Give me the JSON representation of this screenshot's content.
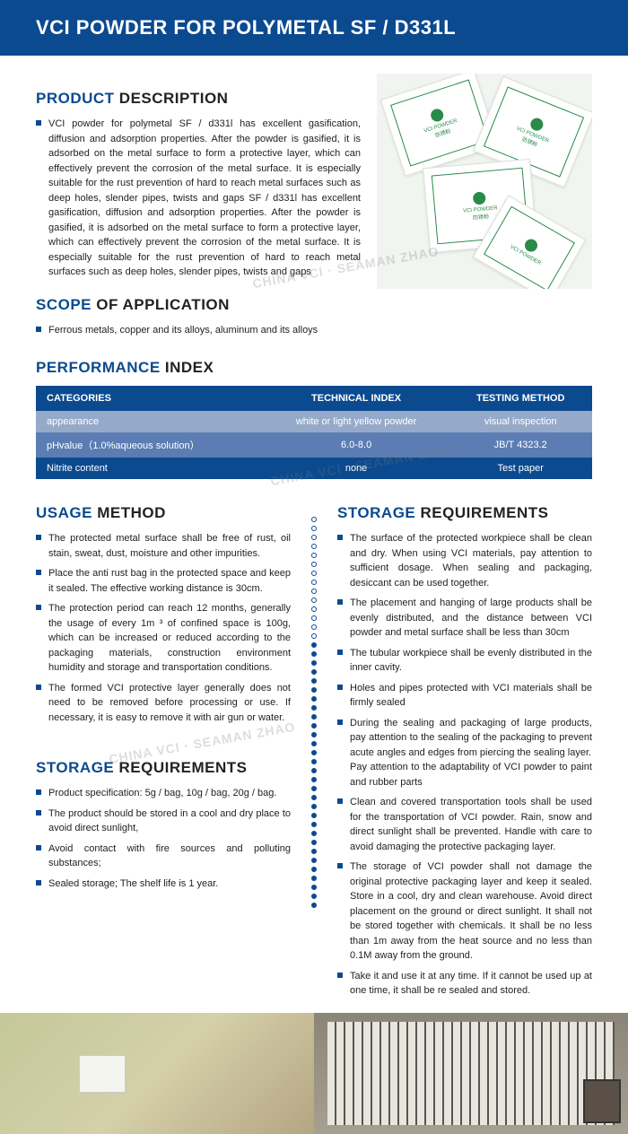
{
  "header": {
    "title": "VCI POWDER FOR POLYMETAL SF / D331L"
  },
  "sections": {
    "product_desc": {
      "title_blue": "PRODUCT",
      "title_black": " DESCRIPTION"
    },
    "scope": {
      "title_blue": "SCOPE",
      "title_black": " OF APPLICATION"
    },
    "perf": {
      "title_blue": "PERFORMANCE",
      "title_black": " INDEX"
    },
    "usage": {
      "title_blue": "USAGE",
      "title_black": " METHOD"
    },
    "storage1": {
      "title_blue": "STORAGE",
      "title_black": " REQUIREMENTS"
    },
    "storage2": {
      "title_blue": "STORAGE",
      "title_black": " REQUIREMENTS"
    }
  },
  "product_description": "VCI powder for polymetal SF / d331l has excellent gasification, diffusion and adsorption properties. After the powder is gasified, it is adsorbed on the metal surface to form a protective layer, which can effectively prevent the corrosion of the metal surface. It is especially suitable for the rust prevention of hard to reach metal surfaces such as deep holes, slender pipes, twists and gaps SF / d331l has excellent gasification, diffusion and adsorption properties. After the powder is gasified, it is adsorbed on the metal surface to form a protective layer, which can effectively prevent the corrosion of the metal surface. It is especially suitable for the rust prevention of hard to reach metal surfaces such as deep holes, slender pipes, twists and gaps",
  "scope_text": "Ferrous metals, copper and its alloys, aluminum and its alloys",
  "packet_label_top": "VCI POWDER",
  "packet_label_bot": "防锈粉",
  "perf_table": {
    "headers": [
      "CATEGORIES",
      "TECHNICAL INDEX",
      "TESTING METHOD"
    ],
    "rows": [
      [
        "appearance",
        "white or light yellow powder",
        "visual inspection"
      ],
      [
        "pHvalue（1.0%aqueous solution）",
        "6.0-8.0",
        "JB/T 4323.2"
      ],
      [
        "Nitrite content",
        "none",
        "Test paper"
      ]
    ]
  },
  "usage_method": [
    "The protected metal surface shall be free of rust, oil stain, sweat, dust, moisture and other impurities.",
    "Place the anti rust bag in the protected space and keep it sealed. The effective working distance is 30cm.",
    "The protection period can reach 12 months, generally the usage of every 1m ³ of confined space is 100g, which can be increased or reduced according to the packaging materials, construction environment humidity and storage and transportation conditions.",
    "The formed VCI protective layer generally does not need to be removed before processing or use. If necessary, it is easy to remove it with air gun or water."
  ],
  "storage_left": [
    "Product specification: 5g / bag, 10g / bag, 20g / bag.",
    "The product should be stored in a cool and dry place to avoid direct sunlight,",
    "Avoid contact with fire sources and polluting substances;",
    "Sealed storage; The shelf life is 1 year."
  ],
  "storage_right": [
    "The surface of the protected workpiece shall be clean and dry. When using VCI materials, pay attention to sufficient dosage. When sealing and packaging, desiccant can be used together.",
    "The placement and hanging of large products shall be evenly distributed, and the distance between VCI powder and metal surface shall be less than 30cm",
    "The tubular workpiece shall be evenly distributed in the inner cavity.",
    "Holes and pipes protected with VCI materials shall be firmly sealed",
    "During the sealing and packaging of large products, pay attention to the sealing of the packaging to prevent acute angles and edges from piercing the sealing layer.\nPay attention to the adaptability of VCI powder to paint and rubber parts",
    "Clean and covered transportation tools shall be used for the transportation of VCI powder. Rain, snow and direct sunlight shall be prevented. Handle with care to avoid damaging the protective packaging layer.",
    "The storage of VCI powder shall not damage the original protective packaging layer and keep it sealed. Store in a cool, dry and clean warehouse. Avoid direct placement on the ground or direct sunlight. It shall not be stored together with chemicals. It shall be no less than 1m away from the heat source and no less than 0.1M away from the ground.",
    "Take it and use it at any time. If it cannot be used up at one time, it shall be re sealed and stored."
  ],
  "watermark_text": "CHINA VCI · SEAMAN ZHAO",
  "colors": {
    "primary": "#0b4a8f",
    "row0": "#95aac9",
    "row1": "#5b7db3",
    "row2": "#0b4a8f",
    "packet_green": "#2a8a4a"
  }
}
